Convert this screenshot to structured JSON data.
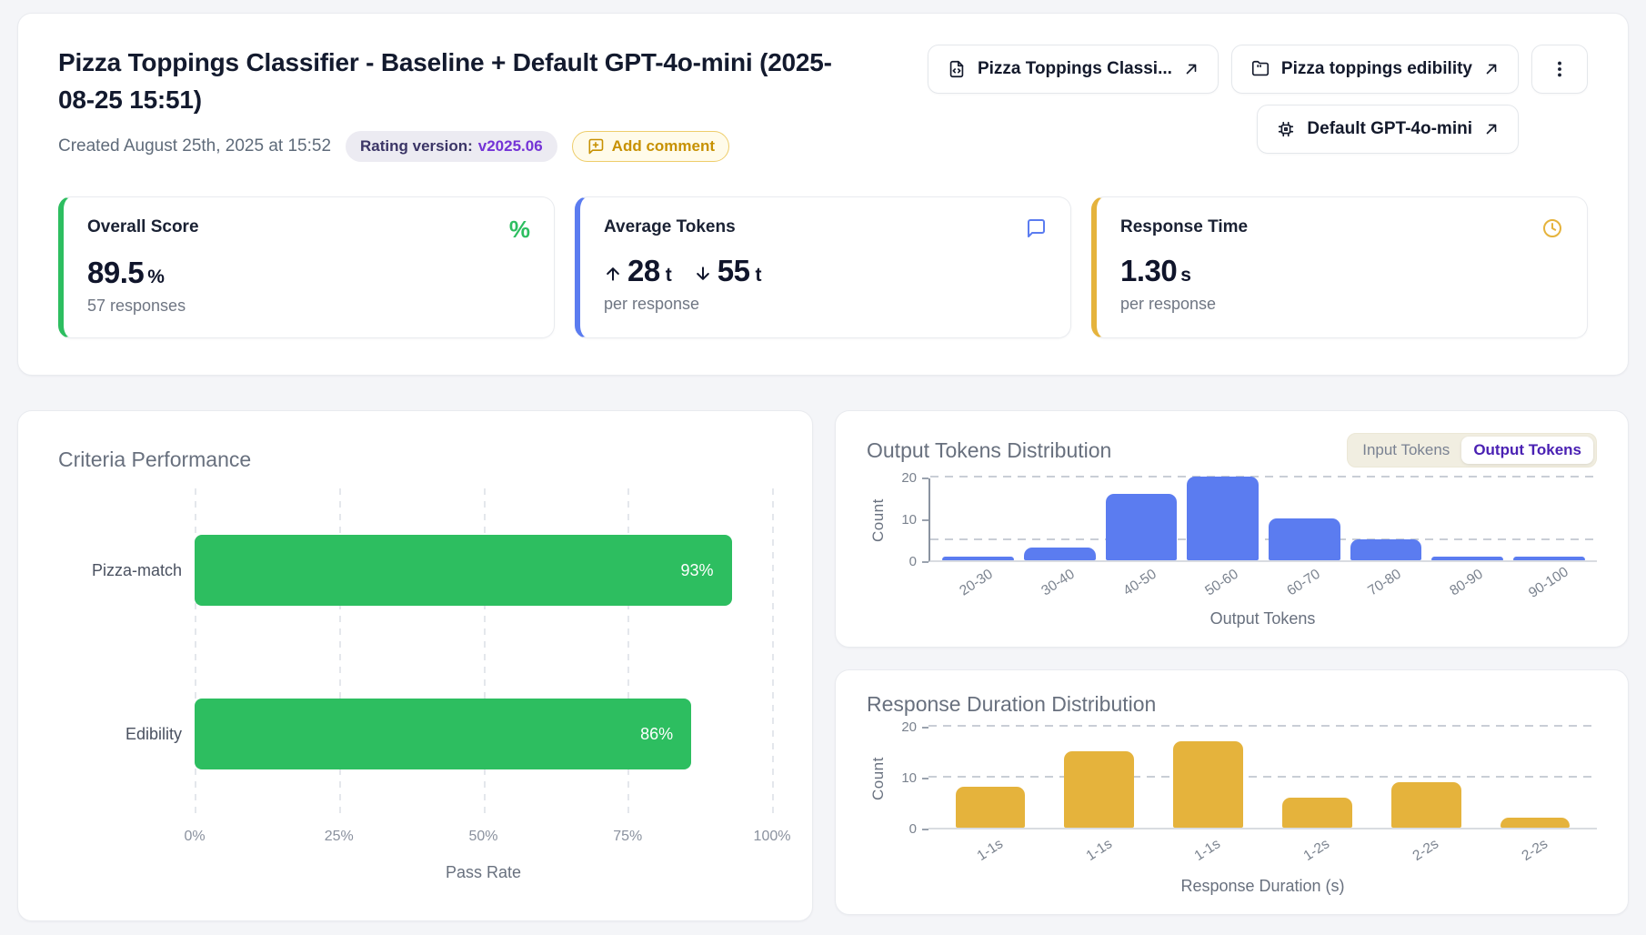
{
  "header": {
    "title": "Pizza Toppings Classifier - Baseline + Default GPT-4o-mini (2025-08-25 15:51)",
    "created": "Created August 25th, 2025 at 15:52",
    "rating_badge": {
      "label": "Rating version:",
      "value": "v2025.06"
    },
    "add_comment_label": "Add comment",
    "links": [
      {
        "label": "Pizza Toppings Classi...",
        "icon": "file-code-icon"
      },
      {
        "label": "Pizza toppings edibility",
        "icon": "folder-icon"
      },
      {
        "label": "Default GPT-4o-mini",
        "icon": "chip-icon"
      }
    ]
  },
  "metrics": [
    {
      "label": "Overall Score",
      "value": "89.5",
      "unit": "%",
      "subtext": "57 responses",
      "accent": "#2DBE60",
      "icon": "percent-icon"
    },
    {
      "label": "Average Tokens",
      "input": {
        "value": "28",
        "unit": "t"
      },
      "output": {
        "value": "55",
        "unit": "t"
      },
      "subtext": "per response",
      "accent": "#5B7CF0",
      "icon": "chat-bubble-icon"
    },
    {
      "label": "Response Time",
      "value": "1.30",
      "unit": "s",
      "subtext": "per response",
      "accent": "#E5B33C",
      "icon": "clock-icon"
    }
  ],
  "colors": {
    "green": "#2DBE60",
    "blue": "#5B7CF0",
    "gold": "#E5B33C",
    "purple_active": "#4A21B3",
    "badge_purple": "#7433D6",
    "comment_gold": "#C79102"
  },
  "chart_data": [
    {
      "type": "bar",
      "orientation": "horizontal",
      "title": "Criteria Performance",
      "categories": [
        "Pizza-match",
        "Edibility"
      ],
      "values": [
        93,
        86
      ],
      "value_labels": [
        "93%",
        "86%"
      ],
      "xlabel": "Pass Rate",
      "x_ticks": [
        "0%",
        "25%",
        "50%",
        "75%",
        "100%"
      ],
      "xlim": [
        0,
        100
      ],
      "grid": "dashed-vertical",
      "bar_color": "#2DBE60"
    },
    {
      "type": "bar",
      "orientation": "vertical",
      "title": "Output Tokens Distribution",
      "toggle": {
        "options": [
          "Input Tokens",
          "Output Tokens"
        ],
        "selected": "Output Tokens"
      },
      "categories": [
        "20-30",
        "30-40",
        "40-50",
        "50-60",
        "60-70",
        "70-80",
        "80-90",
        "90-100"
      ],
      "values": [
        1,
        3,
        16,
        20,
        10,
        5,
        1,
        1
      ],
      "xlabel": "Output Tokens",
      "ylabel": "Count",
      "y_ticks": [
        0,
        10,
        20
      ],
      "ylim": [
        0,
        20
      ],
      "gridlines": [
        5,
        20
      ],
      "y_axis_line": true,
      "bar_width_pct": 88,
      "bar_color": "#5B7CF0"
    },
    {
      "type": "bar",
      "orientation": "vertical",
      "title": "Response Duration Distribution",
      "categories": [
        "1-1s",
        "1-1s",
        "1-1s",
        "1-2s",
        "2-2s",
        "2-2s"
      ],
      "values": [
        8,
        15,
        17,
        6,
        9,
        2
      ],
      "xlabel": "Response Duration (s)",
      "ylabel": "Count",
      "y_ticks": [
        0,
        10,
        20
      ],
      "ylim": [
        0,
        20
      ],
      "gridlines": [
        10,
        20
      ],
      "y_axis_line": false,
      "bar_width_pct": 64,
      "bar_color": "#E5B33C"
    }
  ]
}
